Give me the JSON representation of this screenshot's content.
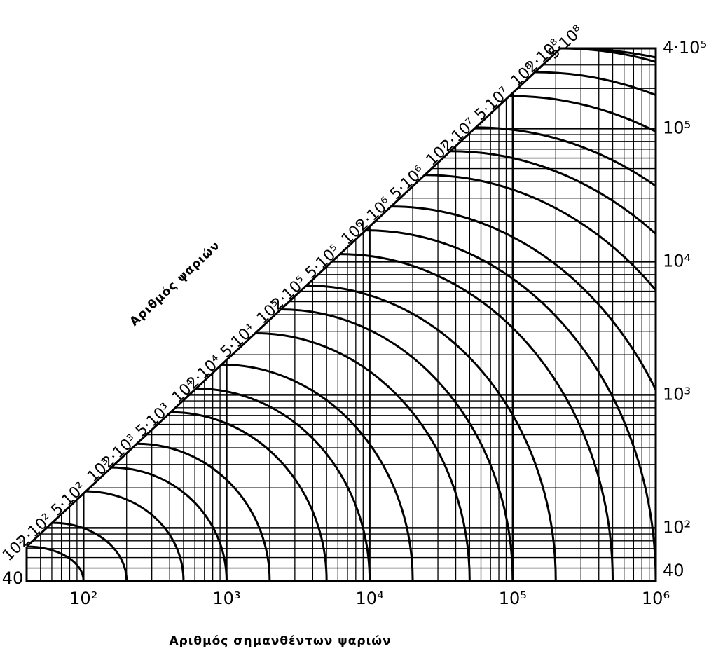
{
  "chart_data": {
    "type": "nomogram",
    "xlabel": "Αριθμός σημανθέντων ψαριών",
    "diagonal_label": "Αριθμός ψαριών",
    "xlim": [
      40,
      1000000
    ],
    "ylim": [
      40,
      400000
    ],
    "log_scale": true,
    "grid": true,
    "color": "#000000",
    "xticks": [
      40,
      {
        "value": 100,
        "label": "10²"
      },
      {
        "value": 1000,
        "label": "10³"
      },
      {
        "value": 10000,
        "label": "10⁴"
      },
      {
        "value": 100000,
        "label": "10⁵"
      },
      {
        "value": 1000000,
        "label": "10⁶"
      }
    ],
    "yticks": [
      40,
      {
        "value": 100,
        "label": "10²"
      },
      {
        "value": 1000,
        "label": "10³"
      },
      {
        "value": 10000,
        "label": "10⁴"
      },
      {
        "value": 100000,
        "label": "10⁵"
      },
      {
        "value": 400000,
        "label": "4·10⁵"
      }
    ],
    "curves": [
      {
        "value": 100,
        "label": "10²"
      },
      {
        "value": 200,
        "label": "2·10²"
      },
      {
        "value": 500,
        "label": "5·10²"
      },
      {
        "value": 1000,
        "label": "10³"
      },
      {
        "value": 2000,
        "label": "2·10³"
      },
      {
        "value": 5000,
        "label": "5·10³"
      },
      {
        "value": 10000,
        "label": "10⁴"
      },
      {
        "value": 20000,
        "label": "2·10⁴"
      },
      {
        "value": 50000,
        "label": "5·10⁴"
      },
      {
        "value": 100000,
        "label": "10⁵"
      },
      {
        "value": 200000,
        "label": "2·10⁵"
      },
      {
        "value": 500000,
        "label": "5·10⁵"
      },
      {
        "value": 1000000,
        "label": "10⁶"
      },
      {
        "value": 2000000,
        "label": "2·10⁶"
      },
      {
        "value": 5000000,
        "label": "5·10⁶"
      },
      {
        "value": 10000000,
        "label": "10⁷"
      },
      {
        "value": 20000000,
        "label": "2·10⁷"
      },
      {
        "value": 50000000,
        "label": "5·10⁷"
      },
      {
        "value": 100000000,
        "label": "10⁸"
      },
      {
        "value": 200000000,
        "label": "2·10⁸"
      },
      {
        "value": 500000000,
        "label": "5·10⁸"
      }
    ]
  }
}
